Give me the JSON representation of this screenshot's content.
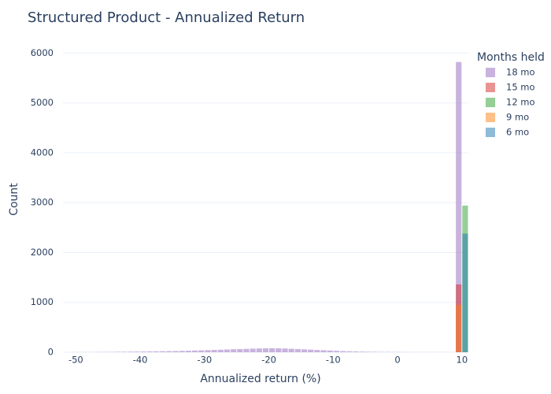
{
  "chart_data": {
    "type": "histogram",
    "title": "Structured Product - Annualized Return",
    "x_label": "Annualized return (%)",
    "y_label": "Count",
    "legend_title": "Months held",
    "xlim": [
      -52,
      11
    ],
    "ylim": [
      0,
      6100
    ],
    "xticks": [
      -50,
      -40,
      -30,
      -20,
      -10,
      0,
      10
    ],
    "yticks": [
      0,
      1000,
      2000,
      3000,
      4000,
      5000,
      6000
    ],
    "grid": true,
    "legend": "right",
    "series": [
      {
        "name": "18 mo",
        "color": "#9467bd",
        "bins": [
          -51,
          -50,
          -49,
          -48,
          -47,
          -46,
          -45,
          -44,
          -43,
          -42,
          -41,
          -40,
          -39,
          -38,
          -37,
          -36,
          -35,
          -34,
          -33,
          -32,
          -31,
          -30,
          -29,
          -28,
          -27,
          -26,
          -25,
          -24,
          -23,
          -22,
          -21,
          -20,
          -19,
          -18,
          -17,
          -16,
          -15,
          -14,
          -13,
          -12,
          -11,
          -10,
          -9,
          -8,
          -7,
          -6,
          -5,
          -4,
          -3,
          -2,
          -1,
          0,
          1,
          2,
          3,
          4,
          5,
          6,
          7,
          8,
          9,
          10
        ],
        "values": [
          2,
          2,
          3,
          3,
          4,
          5,
          6,
          8,
          9,
          11,
          12,
          14,
          16,
          18,
          20,
          22,
          24,
          27,
          30,
          34,
          38,
          42,
          46,
          50,
          55,
          60,
          64,
          68,
          72,
          76,
          78,
          80,
          78,
          75,
          70,
          64,
          58,
          52,
          46,
          40,
          34,
          28,
          23,
          19,
          15,
          12,
          10,
          8,
          6,
          5,
          4,
          3,
          3,
          2,
          2,
          2,
          1,
          1,
          1,
          1,
          5820
        ]
      },
      {
        "name": "15 mo",
        "color": "#d62728",
        "bins": [
          9,
          10
        ],
        "values": [
          1360
        ]
      },
      {
        "name": "12 mo",
        "color": "#2ca02c",
        "bins": [
          10,
          11
        ],
        "values": [
          2940
        ]
      },
      {
        "name": "9 mo",
        "color": "#ff7f0e",
        "bins": [
          9,
          10
        ],
        "values": [
          950
        ]
      },
      {
        "name": "6 mo",
        "color": "#1f77b4",
        "bins": [
          10,
          11
        ],
        "values": [
          2380
        ]
      }
    ]
  }
}
